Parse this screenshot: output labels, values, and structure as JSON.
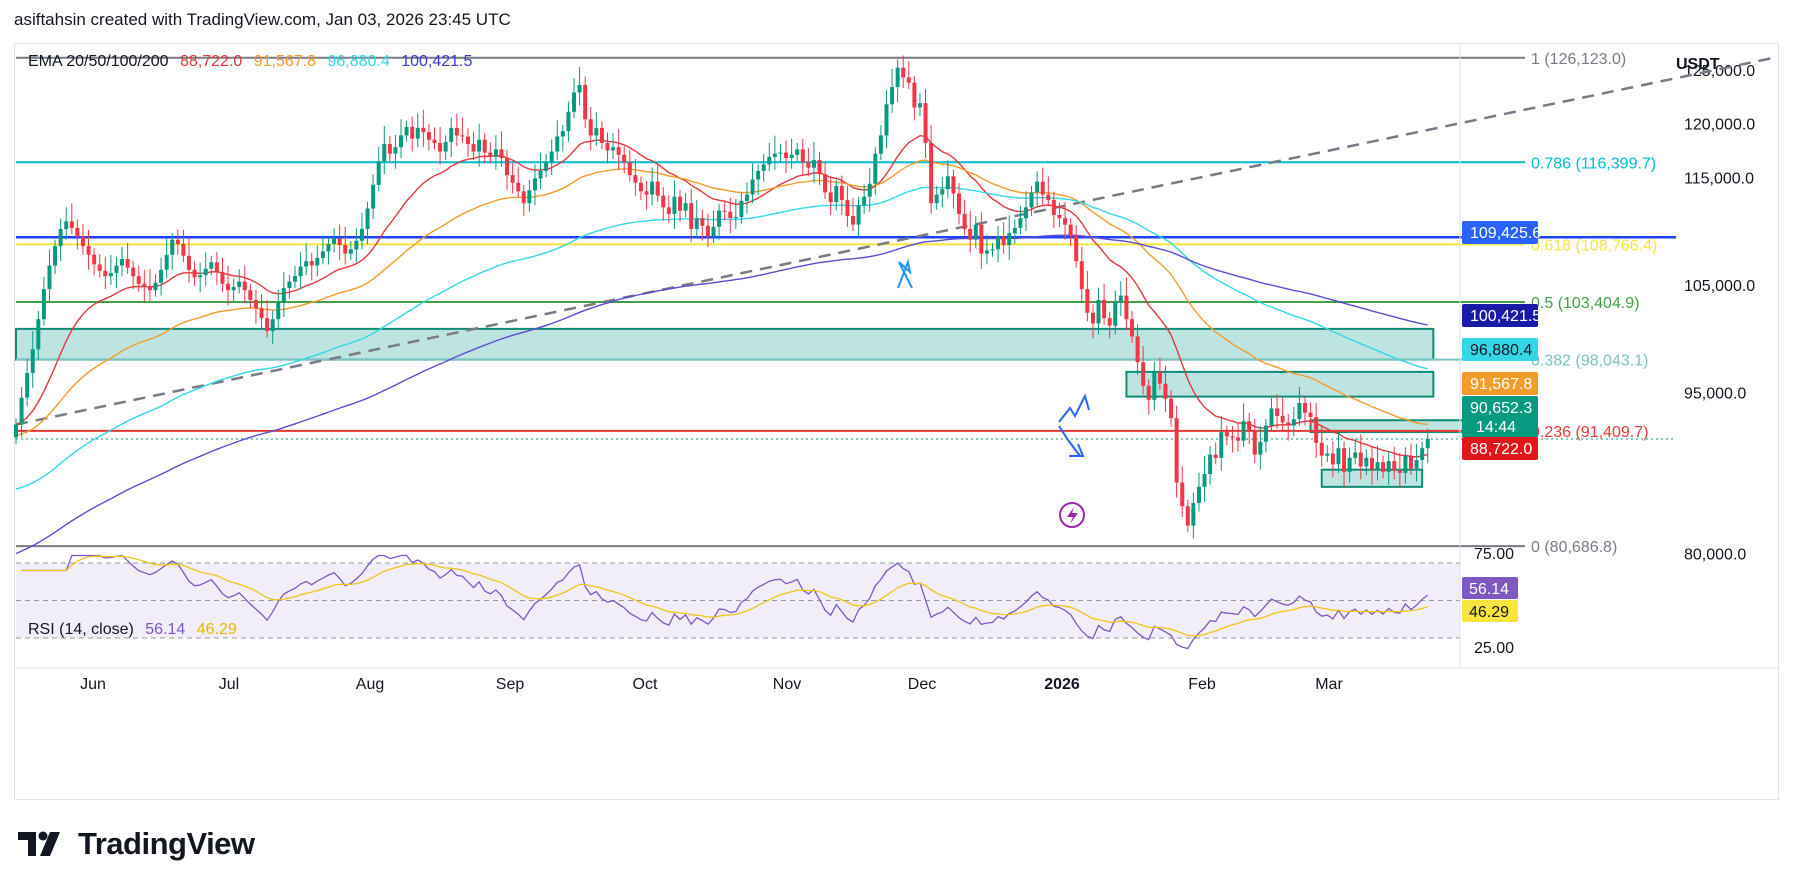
{
  "header": {
    "caption": "asiftahsin created with TradingView.com, Jan 03, 2026 23:45 UTC"
  },
  "legend": {
    "label": "EMA 20/50/100/200",
    "values": [
      "88,722.0",
      "91,567.8",
      "96,880.4",
      "100,421.5"
    ],
    "colors": [
      "#e03a3e",
      "#f39c2b",
      "#34d7e6",
      "#5b4ed1"
    ]
  },
  "currency": "USDT",
  "rsi_legend": {
    "label": "RSI (14, close)",
    "rsi": "56.14",
    "ma": "46.29",
    "rsi_color": "#7e57c2",
    "ma_color": "#f0c419"
  },
  "brand": {
    "name": "TradingView"
  },
  "chart_data": {
    "type": "candlestick",
    "price_axis": {
      "ticks": [
        125000,
        120000,
        115000,
        105000,
        95000,
        80000
      ],
      "labels": [
        "125,000.0",
        "120,000.0",
        "115,000.0",
        "105,000.0",
        "95,000.0",
        "80,000.0"
      ],
      "range": [
        78000,
        127500
      ]
    },
    "time_axis": {
      "labels": [
        "Jun",
        "Jul",
        "Aug",
        "Sep",
        "Oct",
        "Nov",
        "Dec",
        "2026",
        "Feb",
        "Mar"
      ]
    },
    "fibonacci": [
      {
        "ratio": "1",
        "label": "1 (126,123.0)",
        "price": 126123.0,
        "color": "#787b86"
      },
      {
        "ratio": "0.786",
        "label": "0.786 (116,399.7)",
        "price": 116399.7,
        "color": "#00bcd4"
      },
      {
        "ratio": "0.618",
        "label": "0.618 (108,766.4)",
        "price": 108766.4,
        "color": "#f7e53c"
      },
      {
        "ratio": "0.5",
        "label": "0.5 (103,404.9)",
        "price": 103404.9,
        "color": "#43a047"
      },
      {
        "ratio": "0.382",
        "label": "0.382 (98,043.1)",
        "price": 98043.1,
        "color": "#7bc4c4"
      },
      {
        "ratio": "0.236",
        "label": "0.236 (91,409.7)",
        "price": 91409.7,
        "color": "#e53935"
      },
      {
        "ratio": "0",
        "label": "0 (80,686.8)",
        "price": 80686.8,
        "color": "#787b86"
      }
    ],
    "horizontal_levels": [
      {
        "price": 109425.6,
        "color": "#1e40ff"
      }
    ],
    "price_badges": [
      {
        "label": "109,425.6",
        "price": 109425.6,
        "color": "#2962ff",
        "text": "#ffffff"
      },
      {
        "label": "100,421.5",
        "price": 100421.5,
        "color": "#1a1aa8",
        "text": "#ffffff"
      },
      {
        "label": "96,880.4",
        "price": 96880.4,
        "color": "#34d7e6",
        "text": "#131722"
      },
      {
        "label": "91,567.8",
        "price": 91567.8,
        "color": "#f39c2b",
        "text": "#ffffff"
      },
      {
        "label": "90,652.3",
        "sub": "14:44",
        "price": 90652.3,
        "color": "#089981",
        "text": "#ffffff"
      },
      {
        "label": "88,722.0",
        "price": 88722.0,
        "color": "#e0161a",
        "text": "#ffffff"
      }
    ],
    "zones": [
      {
        "from_day": 0,
        "to_day": 254,
        "low": 98043,
        "high": 100900,
        "color": "#26a69a"
      },
      {
        "from_day": 199,
        "to_day": 254,
        "low": 94600,
        "high": 96900,
        "color": "#26a69a"
      },
      {
        "from_day": 232,
        "to_day": 263,
        "low": 91300,
        "high": 92400,
        "color": "#26a69a"
      },
      {
        "from_day": 234,
        "to_day": 252,
        "low": 86200,
        "high": 87800,
        "color": "#26a69a"
      }
    ],
    "trendline": {
      "from": [
        0,
        92000
      ],
      "to": [
        315,
        126123
      ]
    },
    "closes": [
      92000,
      94500,
      96800,
      99000,
      101800,
      104600,
      106800,
      108600,
      110200,
      110900,
      110300,
      109500,
      108600,
      107800,
      106900,
      106300,
      105800,
      106100,
      106800,
      107400,
      106600,
      105800,
      105100,
      104800,
      104500,
      105200,
      106400,
      107800,
      109200,
      108800,
      107700,
      106400,
      105700,
      105900,
      106500,
      107100,
      106200,
      105100,
      104500,
      104800,
      105300,
      104500,
      103600,
      102800,
      101900,
      100700,
      101800,
      103400,
      104700,
      105300,
      105800,
      106700,
      107200,
      106800,
      107500,
      108100,
      108800,
      109300,
      108700,
      107900,
      108300,
      109100,
      110200,
      112100,
      114300,
      116500,
      118100,
      117200,
      117800,
      118900,
      119700,
      118600,
      119600,
      119200,
      118500,
      118200,
      117400,
      118300,
      119600,
      118900,
      118800,
      118100,
      117400,
      118500,
      117300,
      116900,
      117600,
      116800,
      115200,
      114500,
      113700,
      112600,
      113800,
      114900,
      115600,
      116400,
      117400,
      118800,
      119300,
      121100,
      122900,
      123600,
      120400,
      118900,
      119600,
      118200,
      117500,
      117800,
      117100,
      116400,
      115200,
      114500,
      113700,
      113400,
      114600,
      113300,
      112200,
      111600,
      113200,
      111900,
      112600,
      110200,
      111200,
      110500,
      109500,
      110400,
      111900,
      111800,
      111200,
      111300,
      112800,
      113400,
      114800,
      115600,
      116200,
      116900,
      117200,
      117300,
      116800,
      117100,
      117600,
      116400,
      115900,
      116600,
      115300,
      113600,
      112700,
      114200,
      112900,
      111400,
      110600,
      112400,
      113200,
      114400,
      117200,
      118900,
      121800,
      123400,
      125200,
      124300,
      123800,
      121500,
      121900,
      118200,
      112600,
      113400,
      113900,
      115100,
      113500,
      111600,
      110200,
      109200,
      110600,
      107900,
      108200,
      108300,
      109500,
      108700,
      109800,
      110300,
      111200,
      112200,
      113600,
      114600,
      113400,
      112900,
      111500,
      111200,
      110600,
      109600,
      107200,
      104600,
      102400,
      101400,
      103600,
      101900,
      101200,
      103500,
      104000,
      101800,
      100200,
      97800,
      95600,
      94300,
      96900,
      95800,
      94400,
      92600,
      86600,
      84400,
      82600,
      84700,
      86200,
      87400,
      89200,
      88900,
      91300,
      90900,
      90800,
      90500,
      92300,
      91400,
      89200,
      90400,
      91900,
      93500,
      92800,
      92200,
      91900,
      92500,
      94000,
      93100,
      92700,
      90300,
      89100,
      89300,
      88300,
      89800,
      87600,
      88900,
      89400,
      88100,
      88900,
      87800,
      88500,
      87600,
      88600,
      87700,
      87500,
      89100,
      87900,
      88700,
      89800,
      90652
    ]
  }
}
